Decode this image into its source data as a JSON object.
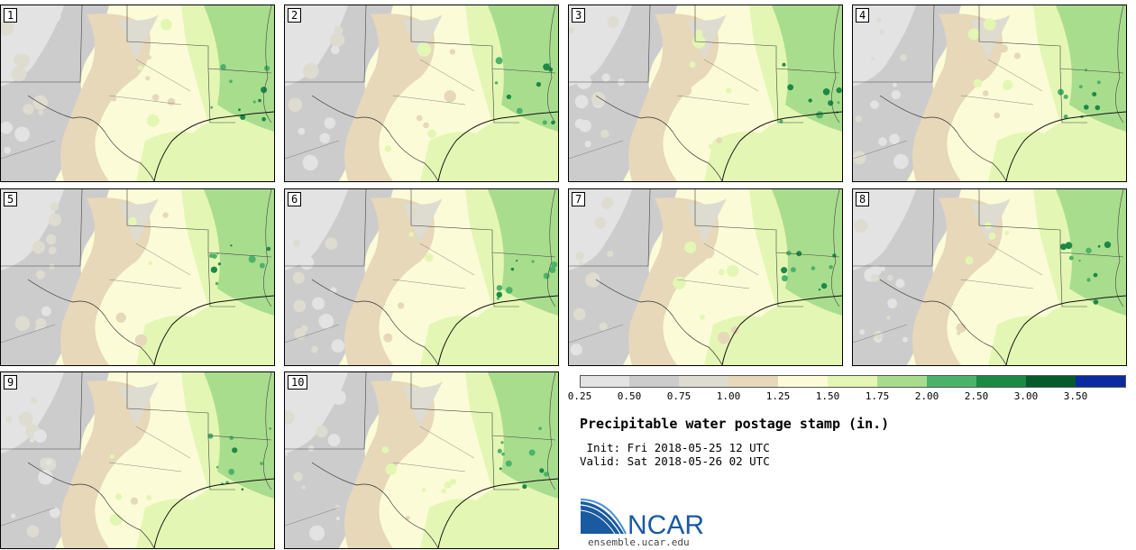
{
  "panels": [
    {
      "label": "1"
    },
    {
      "label": "2"
    },
    {
      "label": "3"
    },
    {
      "label": "4"
    },
    {
      "label": "5"
    },
    {
      "label": "6"
    },
    {
      "label": "7"
    },
    {
      "label": "8"
    },
    {
      "label": "9"
    },
    {
      "label": "10"
    }
  ],
  "colorbar": {
    "colors": [
      "#e3e3e3",
      "#cccccc",
      "#dedcd0",
      "#e6d8b9",
      "#fbfcd7",
      "#e4f6b4",
      "#a9dd8e",
      "#4cb36a",
      "#1a8a45",
      "#065b2b",
      "#0c2aa0"
    ],
    "ticks": [
      "0.25",
      "0.50",
      "0.75",
      "1.00",
      "1.25",
      "1.50",
      "1.75",
      "2.00",
      "2.50",
      "3.00",
      "3.50"
    ]
  },
  "title": "Precipitable water postage stamp (in.)",
  "init_line": " Init: Fri 2018-05-25 12 UTC",
  "valid_line": "Valid: Sat 2018-05-26 02 UTC",
  "logo": {
    "text": "NCAR",
    "url": "ensemble.ucar.edu"
  }
}
